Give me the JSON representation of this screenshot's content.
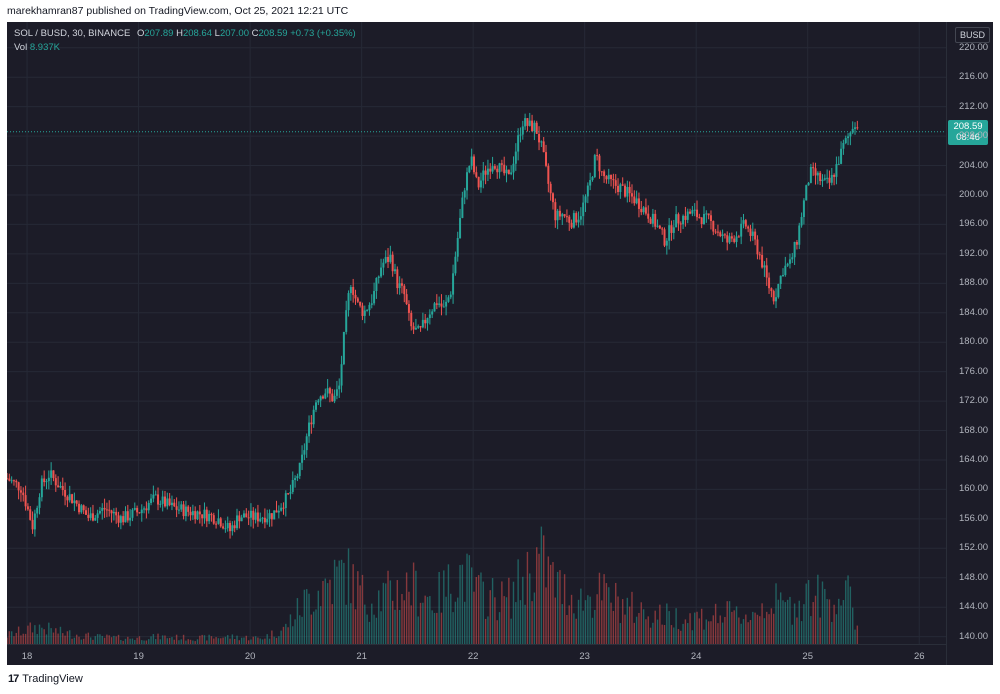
{
  "header": {
    "published": "marekhamran87 published on TradingView.com, Oct 25, 2021 12:21 UTC"
  },
  "legend": {
    "symbol": "SOL / BUSD, 30, BINANCE",
    "o_label": "O",
    "o_value": "207.89",
    "h_label": "H",
    "h_value": "208.64",
    "l_label": "L",
    "l_value": "207.00",
    "c_label": "C",
    "c_value": "208.59",
    "change": "+0.73 (+0.35%)",
    "vol_label": "Vol",
    "vol_value": "8.937K"
  },
  "currency": "BUSD",
  "last_price": {
    "price": "208.59",
    "countdown": "08:46"
  },
  "footer": {
    "brand": "TradingView"
  },
  "colors": {
    "up": "#26a69a",
    "down": "#ef5350",
    "background": "#1c1c28"
  },
  "chart_data": {
    "type": "candlestick",
    "symbol": "SOL / BUSD",
    "interval": "30",
    "exchange": "BINANCE",
    "y_ticks": [
      "220.00",
      "216.00",
      "212.00",
      "208.00",
      "204.00",
      "200.00",
      "196.00",
      "192.00",
      "188.00",
      "184.00",
      "180.00",
      "176.00",
      "172.00",
      "168.00",
      "164.00",
      "160.00",
      "156.00",
      "152.00",
      "148.00",
      "144.00",
      "140.00"
    ],
    "ylim": [
      139.0,
      223.5
    ],
    "x_ticks": [
      "18",
      "19",
      "20",
      "21",
      "22",
      "23",
      "24",
      "25",
      "26"
    ],
    "xlim": [
      17.82,
      26.24
    ],
    "last_price": 208.59,
    "last_time": 25.46,
    "price_path": [
      [
        17.82,
        161.5
      ],
      [
        17.95,
        160.2
      ],
      [
        18.05,
        155.0
      ],
      [
        18.12,
        160.4
      ],
      [
        18.2,
        162.1
      ],
      [
        18.3,
        160.3
      ],
      [
        18.42,
        158.5
      ],
      [
        18.55,
        156.2
      ],
      [
        18.7,
        157.4
      ],
      [
        18.85,
        156.0
      ],
      [
        19.0,
        157.0
      ],
      [
        19.15,
        158.8
      ],
      [
        19.3,
        157.6
      ],
      [
        19.45,
        157.0
      ],
      [
        19.6,
        156.6
      ],
      [
        19.72,
        156.0
      ],
      [
        19.82,
        154.4
      ],
      [
        19.9,
        156.4
      ],
      [
        20.05,
        156.2
      ],
      [
        20.2,
        156.6
      ],
      [
        20.35,
        159.2
      ],
      [
        20.45,
        163.0
      ],
      [
        20.52,
        168.0
      ],
      [
        20.6,
        172.6
      ],
      [
        20.68,
        173.4
      ],
      [
        20.75,
        172.2
      ],
      [
        20.8,
        174.0
      ],
      [
        20.85,
        182.0
      ],
      [
        20.9,
        188.4
      ],
      [
        20.96,
        185.2
      ],
      [
        21.02,
        184.0
      ],
      [
        21.1,
        186.0
      ],
      [
        21.18,
        190.6
      ],
      [
        21.26,
        191.6
      ],
      [
        21.32,
        188.0
      ],
      [
        21.38,
        186.6
      ],
      [
        21.44,
        182.0
      ],
      [
        21.52,
        181.2
      ],
      [
        21.6,
        184.0
      ],
      [
        21.68,
        185.6
      ],
      [
        21.74,
        184.4
      ],
      [
        21.8,
        187.0
      ],
      [
        21.86,
        194.0
      ],
      [
        21.92,
        201.0
      ],
      [
        21.98,
        205.0
      ],
      [
        22.04,
        201.0
      ],
      [
        22.1,
        203.0
      ],
      [
        22.18,
        204.6
      ],
      [
        22.26,
        203.2
      ],
      [
        22.32,
        202.2
      ],
      [
        22.38,
        206.0
      ],
      [
        22.44,
        210.0
      ],
      [
        22.5,
        209.4
      ],
      [
        22.56,
        209.2
      ],
      [
        22.62,
        206.0
      ],
      [
        22.68,
        201.0
      ],
      [
        22.74,
        197.0
      ],
      [
        22.8,
        197.4
      ],
      [
        22.88,
        196.4
      ],
      [
        22.96,
        197.4
      ],
      [
        23.04,
        201.0
      ],
      [
        23.1,
        205.4
      ],
      [
        23.16,
        202.6
      ],
      [
        23.24,
        201.6
      ],
      [
        23.32,
        201.0
      ],
      [
        23.4,
        200.0
      ],
      [
        23.48,
        199.0
      ],
      [
        23.56,
        197.6
      ],
      [
        23.64,
        196.0
      ],
      [
        23.72,
        193.8
      ],
      [
        23.8,
        196.4
      ],
      [
        23.88,
        197.0
      ],
      [
        23.96,
        197.6
      ],
      [
        24.04,
        197.0
      ],
      [
        24.12,
        196.4
      ],
      [
        24.2,
        195.0
      ],
      [
        24.28,
        193.6
      ],
      [
        24.36,
        194.6
      ],
      [
        24.44,
        196.0
      ],
      [
        24.52,
        193.8
      ],
      [
        24.58,
        191.4
      ],
      [
        24.64,
        188.0
      ],
      [
        24.7,
        186.0
      ],
      [
        24.78,
        190.0
      ],
      [
        24.84,
        190.6
      ],
      [
        24.9,
        193.6
      ],
      [
        24.96,
        198.6
      ],
      [
        25.02,
        203.0
      ],
      [
        25.08,
        202.6
      ],
      [
        25.14,
        201.6
      ],
      [
        25.2,
        201.6
      ],
      [
        25.26,
        204.0
      ],
      [
        25.32,
        206.6
      ],
      [
        25.38,
        208.4
      ],
      [
        25.42,
        210.2
      ],
      [
        25.46,
        208.59
      ]
    ],
    "volume_profile": [
      [
        17.82,
        0.06
      ],
      [
        18.1,
        0.12
      ],
      [
        18.3,
        0.08
      ],
      [
        18.6,
        0.05
      ],
      [
        18.9,
        0.04
      ],
      [
        19.2,
        0.05
      ],
      [
        19.5,
        0.04
      ],
      [
        19.8,
        0.05
      ],
      [
        20.1,
        0.04
      ],
      [
        20.3,
        0.1
      ],
      [
        20.5,
        0.3
      ],
      [
        20.65,
        0.4
      ],
      [
        20.85,
        0.5
      ],
      [
        21.05,
        0.3
      ],
      [
        21.25,
        0.35
      ],
      [
        21.45,
        0.4
      ],
      [
        21.65,
        0.3
      ],
      [
        21.9,
        0.5
      ],
      [
        22.05,
        0.35
      ],
      [
        22.3,
        0.3
      ],
      [
        22.45,
        0.45
      ],
      [
        22.6,
        0.6
      ],
      [
        22.75,
        0.4
      ],
      [
        22.95,
        0.3
      ],
      [
        23.15,
        0.35
      ],
      [
        23.4,
        0.25
      ],
      [
        23.65,
        0.2
      ],
      [
        23.9,
        0.18
      ],
      [
        24.2,
        0.2
      ],
      [
        24.5,
        0.2
      ],
      [
        24.65,
        0.3
      ],
      [
        24.85,
        0.25
      ],
      [
        25.0,
        0.35
      ],
      [
        25.2,
        0.3
      ],
      [
        25.35,
        0.35
      ],
      [
        25.46,
        0.1
      ]
    ]
  }
}
